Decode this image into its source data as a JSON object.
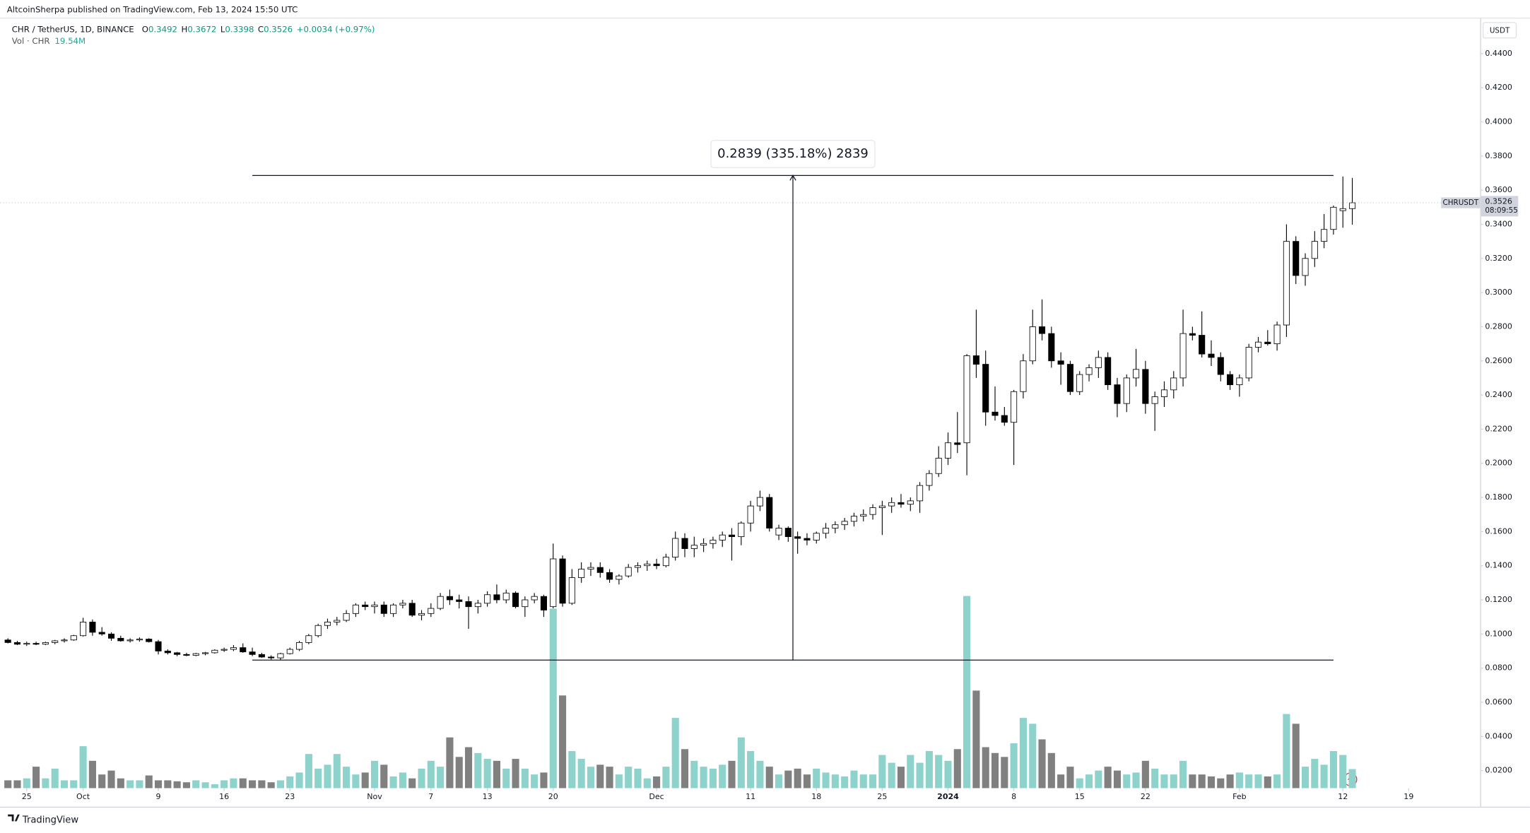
{
  "header": {
    "publisher": "AltcoinSherpa published on TradingView.com, Feb 13, 2024 15:50 UTC",
    "symbol": "CHR / TetherUS, 1D, BINANCE",
    "ohlc": [
      {
        "key": "O",
        "value": "0.3492"
      },
      {
        "key": "H",
        "value": "0.3672"
      },
      {
        "key": "L",
        "value": "0.3398"
      },
      {
        "key": "C",
        "value": "0.3526"
      }
    ],
    "change": "+0.0034 (+0.97%)",
    "volume_title": "Vol · CHR",
    "volume_value": "19.54M"
  },
  "footer": "TradingView",
  "chart_data": {
    "type": "candlestick",
    "currency": "USDT",
    "up_color": "#ffffff",
    "down_color": "#000000",
    "border_color": "#000000",
    "volume_up_color": "#8dd3cb",
    "volume_down_color": "#808080",
    "xlim": [
      -0.83,
      156.6
    ],
    "ylim": [
      0.0097,
      0.4714
    ],
    "grid": false,
    "xticks": [
      {
        "value": 2,
        "label": "25"
      },
      {
        "value": 8,
        "label": "Oct"
      },
      {
        "value": 16,
        "label": "9"
      },
      {
        "value": 23,
        "label": "16"
      },
      {
        "value": 30,
        "label": "23"
      },
      {
        "value": 39,
        "label": "Nov"
      },
      {
        "value": 45,
        "label": "7"
      },
      {
        "value": 51,
        "label": "13"
      },
      {
        "value": 58,
        "label": "20"
      },
      {
        "value": 69,
        "label": "Dec"
      },
      {
        "value": 79,
        "label": "11"
      },
      {
        "value": 86,
        "label": "18"
      },
      {
        "value": 93,
        "label": "25"
      },
      {
        "value": 100,
        "label": "2024"
      },
      {
        "value": 107,
        "label": "8"
      },
      {
        "value": 114,
        "label": "15"
      },
      {
        "value": 121,
        "label": "22"
      },
      {
        "value": 131,
        "label": "Feb"
      },
      {
        "value": 142,
        "label": "12"
      },
      {
        "value": 149,
        "label": "19"
      }
    ],
    "yticks": [
      {
        "value": 0.02,
        "label": "0.0200"
      },
      {
        "value": 0.04,
        "label": "0.0400"
      },
      {
        "value": 0.06,
        "label": "0.0600"
      },
      {
        "value": 0.08,
        "label": "0.0800"
      },
      {
        "value": 0.1,
        "label": "0.1000"
      },
      {
        "value": 0.12,
        "label": "0.1200"
      },
      {
        "value": 0.14,
        "label": "0.1400"
      },
      {
        "value": 0.16,
        "label": "0.1600"
      },
      {
        "value": 0.18,
        "label": "0.1800"
      },
      {
        "value": 0.2,
        "label": "0.2000"
      },
      {
        "value": 0.22,
        "label": "0.2200"
      },
      {
        "value": 0.24,
        "label": "0.2400"
      },
      {
        "value": 0.26,
        "label": "0.2600"
      },
      {
        "value": 0.28,
        "label": "0.2800"
      },
      {
        "value": 0.3,
        "label": "0.3000"
      },
      {
        "value": 0.32,
        "label": "0.3200"
      },
      {
        "value": 0.34,
        "label": "0.3400"
      },
      {
        "value": 0.36,
        "label": "0.3600"
      },
      {
        "value": 0.38,
        "label": "0.3800"
      },
      {
        "value": 0.4,
        "label": "0.4000"
      },
      {
        "value": 0.42,
        "label": "0.4200"
      },
      {
        "value": 0.44,
        "label": "0.4400"
      }
    ],
    "open": [
      0.0965,
      0.095,
      0.094,
      0.0945,
      0.094,
      0.095,
      0.096,
      0.0965,
      0.099,
      0.107,
      0.101,
      0.1,
      0.0975,
      0.096,
      0.0965,
      0.097,
      0.0955,
      0.09,
      0.089,
      0.088,
      0.0875,
      0.0885,
      0.089,
      0.0905,
      0.091,
      0.092,
      0.0895,
      0.088,
      0.0865,
      0.086,
      0.0885,
      0.091,
      0.095,
      0.099,
      0.105,
      0.107,
      0.108,
      0.112,
      0.117,
      0.116,
      0.117,
      0.112,
      0.117,
      0.118,
      0.111,
      0.112,
      0.115,
      0.122,
      0.12,
      0.119,
      0.116,
      0.118,
      0.123,
      0.12,
      0.124,
      0.116,
      0.12,
      0.122,
      0.116,
      0.144,
      0.118,
      0.133,
      0.138,
      0.139,
      0.136,
      0.132,
      0.134,
      0.139,
      0.14,
      0.141,
      0.14,
      0.145,
      0.156,
      0.15,
      0.152,
      0.153,
      0.155,
      0.158,
      0.157,
      0.165,
      0.175,
      0.18,
      0.158,
      0.162,
      0.157,
      0.156,
      0.155,
      0.159,
      0.162,
      0.164,
      0.166,
      0.169,
      0.17,
      0.174,
      0.175,
      0.177,
      0.176,
      0.178,
      0.187,
      0.194,
      0.203,
      0.212,
      0.212,
      0.263,
      0.258,
      0.23,
      0.228,
      0.224,
      0.242,
      0.26,
      0.28,
      0.276,
      0.26,
      0.258,
      0.242,
      0.252,
      0.256,
      0.262,
      0.246,
      0.235,
      0.25,
      0.255,
      0.235,
      0.239,
      0.243,
      0.25,
      0.276,
      0.275,
      0.264,
      0.262,
      0.252,
      0.246,
      0.25,
      0.268,
      0.271,
      0.27,
      0.281,
      0.33,
      0.31,
      0.32,
      0.33,
      0.337,
      0.348,
      0.3492
    ],
    "high": [
      0.0975,
      0.096,
      0.0955,
      0.0955,
      0.0955,
      0.0965,
      0.0975,
      0.0995,
      0.1095,
      0.1085,
      0.104,
      0.101,
      0.099,
      0.0975,
      0.098,
      0.0975,
      0.0965,
      0.091,
      0.0895,
      0.089,
      0.089,
      0.0895,
      0.091,
      0.092,
      0.0935,
      0.0945,
      0.092,
      0.089,
      0.0875,
      0.089,
      0.092,
      0.096,
      0.1,
      0.106,
      0.109,
      0.11,
      0.114,
      0.118,
      0.119,
      0.119,
      0.119,
      0.118,
      0.12,
      0.12,
      0.114,
      0.118,
      0.124,
      0.126,
      0.123,
      0.122,
      0.12,
      0.125,
      0.129,
      0.126,
      0.125,
      0.122,
      0.124,
      0.123,
      0.153,
      0.146,
      0.138,
      0.142,
      0.142,
      0.142,
      0.138,
      0.135,
      0.141,
      0.142,
      0.143,
      0.144,
      0.147,
      0.16,
      0.159,
      0.157,
      0.156,
      0.157,
      0.16,
      0.162,
      0.166,
      0.178,
      0.184,
      0.182,
      0.164,
      0.163,
      0.16,
      0.159,
      0.16,
      0.165,
      0.166,
      0.168,
      0.171,
      0.173,
      0.176,
      0.178,
      0.18,
      0.182,
      0.18,
      0.189,
      0.196,
      0.21,
      0.218,
      0.23,
      0.264,
      0.29,
      0.266,
      0.245,
      0.233,
      0.243,
      0.264,
      0.29,
      0.296,
      0.28,
      0.265,
      0.26,
      0.254,
      0.258,
      0.266,
      0.265,
      0.25,
      0.252,
      0.267,
      0.26,
      0.242,
      0.248,
      0.254,
      0.29,
      0.28,
      0.289,
      0.272,
      0.265,
      0.254,
      0.252,
      0.27,
      0.274,
      0.278,
      0.283,
      0.34,
      0.333,
      0.323,
      0.336,
      0.346,
      0.351,
      0.368,
      0.3672
    ],
    "low": [
      0.0945,
      0.0935,
      0.093,
      0.0935,
      0.0935,
      0.094,
      0.095,
      0.096,
      0.0985,
      0.099,
      0.099,
      0.096,
      0.0955,
      0.095,
      0.0955,
      0.095,
      0.088,
      0.088,
      0.087,
      0.087,
      0.087,
      0.0875,
      0.0885,
      0.0895,
      0.09,
      0.089,
      0.087,
      0.086,
      0.085,
      0.0847,
      0.088,
      0.09,
      0.094,
      0.098,
      0.103,
      0.105,
      0.107,
      0.11,
      0.114,
      0.112,
      0.11,
      0.11,
      0.115,
      0.11,
      0.108,
      0.11,
      0.114,
      0.117,
      0.115,
      0.103,
      0.112,
      0.116,
      0.118,
      0.118,
      0.115,
      0.11,
      0.118,
      0.11,
      0.115,
      0.116,
      0.117,
      0.13,
      0.134,
      0.133,
      0.13,
      0.129,
      0.133,
      0.136,
      0.137,
      0.138,
      0.139,
      0.143,
      0.145,
      0.145,
      0.148,
      0.15,
      0.151,
      0.143,
      0.152,
      0.16,
      0.172,
      0.16,
      0.155,
      0.154,
      0.147,
      0.152,
      0.153,
      0.156,
      0.159,
      0.161,
      0.163,
      0.166,
      0.167,
      0.158,
      0.171,
      0.174,
      0.172,
      0.171,
      0.184,
      0.192,
      0.199,
      0.206,
      0.193,
      0.25,
      0.222,
      0.225,
      0.222,
      0.199,
      0.238,
      0.258,
      0.272,
      0.256,
      0.246,
      0.24,
      0.24,
      0.248,
      0.25,
      0.243,
      0.227,
      0.23,
      0.245,
      0.229,
      0.219,
      0.233,
      0.238,
      0.245,
      0.272,
      0.262,
      0.257,
      0.248,
      0.243,
      0.239,
      0.248,
      0.265,
      0.269,
      0.266,
      0.274,
      0.305,
      0.304,
      0.315,
      0.326,
      0.334,
      0.338,
      0.3398
    ],
    "close": [
      0.095,
      0.094,
      0.0945,
      0.094,
      0.095,
      0.096,
      0.0965,
      0.099,
      0.107,
      0.101,
      0.1,
      0.0975,
      0.096,
      0.0965,
      0.097,
      0.0955,
      0.09,
      0.089,
      0.088,
      0.0875,
      0.0885,
      0.089,
      0.0905,
      0.091,
      0.092,
      0.0895,
      0.088,
      0.0865,
      0.086,
      0.0885,
      0.091,
      0.095,
      0.099,
      0.105,
      0.107,
      0.108,
      0.112,
      0.117,
      0.116,
      0.117,
      0.112,
      0.117,
      0.118,
      0.111,
      0.112,
      0.115,
      0.122,
      0.12,
      0.119,
      0.116,
      0.118,
      0.123,
      0.12,
      0.124,
      0.116,
      0.12,
      0.122,
      0.114,
      0.144,
      0.118,
      0.133,
      0.138,
      0.139,
      0.136,
      0.132,
      0.134,
      0.139,
      0.14,
      0.141,
      0.14,
      0.145,
      0.156,
      0.15,
      0.152,
      0.153,
      0.155,
      0.158,
      0.157,
      0.165,
      0.175,
      0.18,
      0.162,
      0.162,
      0.157,
      0.156,
      0.155,
      0.159,
      0.162,
      0.164,
      0.166,
      0.169,
      0.17,
      0.174,
      0.175,
      0.177,
      0.176,
      0.178,
      0.187,
      0.194,
      0.203,
      0.212,
      0.211,
      0.263,
      0.258,
      0.23,
      0.228,
      0.224,
      0.242,
      0.26,
      0.28,
      0.276,
      0.26,
      0.258,
      0.242,
      0.252,
      0.256,
      0.262,
      0.246,
      0.235,
      0.25,
      0.255,
      0.235,
      0.239,
      0.243,
      0.25,
      0.276,
      0.275,
      0.264,
      0.262,
      0.252,
      0.246,
      0.25,
      0.268,
      0.271,
      0.27,
      0.281,
      0.33,
      0.31,
      0.32,
      0.33,
      0.337,
      0.35,
      0.3492,
      0.3526
    ],
    "volume": [
      8,
      8,
      10,
      22,
      10,
      20,
      8,
      8,
      43,
      28,
      14,
      18,
      10,
      8,
      8,
      13,
      8,
      8,
      7,
      6,
      8,
      6,
      4,
      8,
      10,
      10,
      8,
      8,
      6,
      8,
      12,
      16,
      35,
      20,
      24,
      35,
      22,
      14,
      16,
      28,
      24,
      12,
      16,
      10,
      20,
      28,
      22,
      52,
      32,
      42,
      36,
      30,
      28,
      20,
      30,
      20,
      14,
      16,
      184,
      95,
      38,
      30,
      22,
      24,
      22,
      14,
      22,
      20,
      10,
      12,
      22,
      72,
      40,
      28,
      22,
      20,
      24,
      28,
      52,
      38,
      28,
      22,
      14,
      18,
      20,
      14,
      20,
      16,
      14,
      12,
      18,
      14,
      14,
      34,
      26,
      22,
      34,
      26,
      38,
      34,
      28,
      40,
      197,
      100,
      42,
      36,
      32,
      46,
      72,
      66,
      50,
      36,
      14,
      22,
      10,
      14,
      18,
      22,
      18,
      14,
      16,
      28,
      20,
      14,
      14,
      28,
      14,
      14,
      12,
      10,
      14,
      16,
      14,
      14,
      12,
      14,
      76,
      66,
      22,
      30,
      24,
      38,
      34,
      19.54
    ],
    "price_line": {
      "symbol": "CHRUSDT",
      "price": 0.3526,
      "countdown": "08:09:55"
    },
    "measure": {
      "text": "0.2839 (335.18%) 2839",
      "low": 0.0847,
      "high": 0.3686,
      "start": 26,
      "end": 141
    }
  }
}
